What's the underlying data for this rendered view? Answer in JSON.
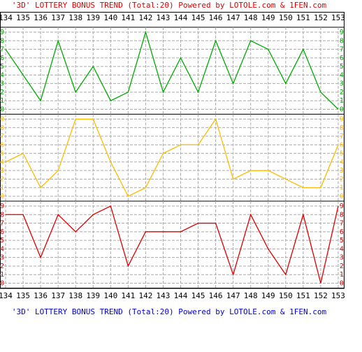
{
  "chart_data": {
    "type": "line",
    "title": "'3D' LOTTERY BONUS TREND (Total:20)  Powered by LOTOLE.com & 1FEN.com",
    "categories": [
      "134",
      "135",
      "136",
      "137",
      "138",
      "139",
      "140",
      "141",
      "142",
      "143",
      "144",
      "145",
      "146",
      "147",
      "148",
      "149",
      "150",
      "151",
      "152",
      "153"
    ],
    "ylim": [
      0,
      9
    ],
    "yticks": [
      0,
      1,
      2,
      3,
      4,
      5,
      6,
      7,
      8,
      9
    ],
    "grid": true,
    "series": [
      {
        "color": "#00aa00",
        "values": [
          7,
          4,
          1,
          8,
          2,
          5,
          1,
          2,
          9,
          2,
          6,
          2,
          8,
          3,
          8,
          7,
          3,
          7,
          2,
          0
        ]
      },
      {
        "color": "#ffbb00",
        "values": [
          4,
          5,
          1,
          3,
          9,
          9,
          4,
          0,
          1,
          5,
          6,
          6,
          9,
          2,
          3,
          3,
          2,
          1,
          1,
          6
        ]
      },
      {
        "color": "#dd0000",
        "values": [
          8,
          8,
          3,
          8,
          6,
          8,
          9,
          2,
          6,
          6,
          6,
          7,
          7,
          1,
          8,
          4,
          1,
          8,
          0,
          9
        ]
      }
    ]
  }
}
